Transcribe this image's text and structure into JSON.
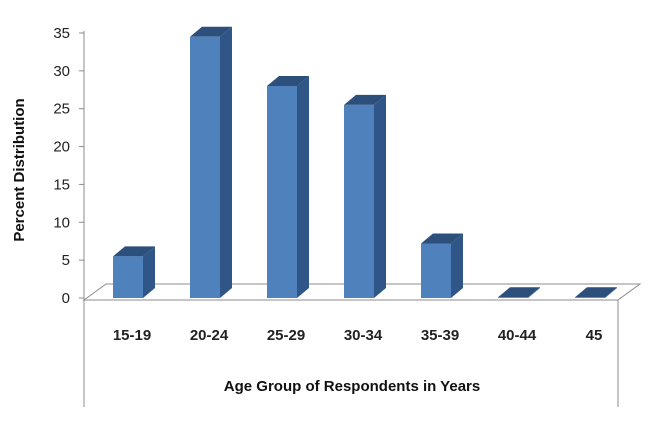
{
  "chart_data": {
    "type": "bar",
    "style": "3d-column",
    "categories": [
      "15-19",
      "20-24",
      "25-29",
      "30-34",
      "35-39",
      "40-44",
      "45"
    ],
    "values": [
      5.5,
      34.5,
      28,
      25.5,
      7.2,
      0.1,
      0.1
    ],
    "xlabel": "Age Group of Respondents in Years",
    "ylabel": "Percent Distribution",
    "ylim": [
      0,
      35
    ],
    "yticks": [
      "0",
      "5",
      "10",
      "15",
      "20",
      "25",
      "30",
      "35"
    ],
    "grid": false,
    "legend": "none",
    "colors": {
      "bar_front": "#4f81bd",
      "bar_side": "#2f5687",
      "bar_top": "#2c4f7c",
      "floor": "#ffffff",
      "floor_stroke": "#8c8c8c"
    }
  }
}
